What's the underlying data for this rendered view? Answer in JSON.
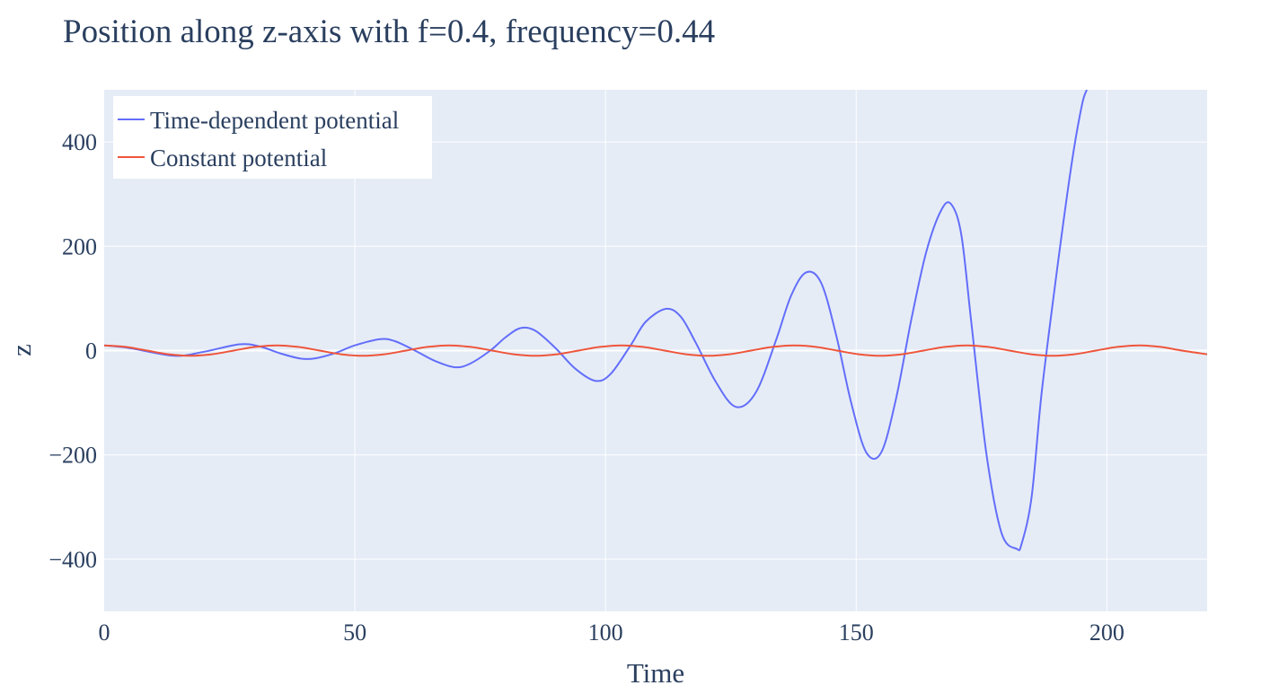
{
  "chart_data": {
    "type": "line",
    "title": "Position along z-axis with f=0.4, frequency=0.44",
    "xlabel": "Time",
    "ylabel": "z",
    "xlim": [
      0,
      220
    ],
    "ylim": [
      -500,
      500
    ],
    "xticks": [
      0,
      50,
      100,
      150,
      200
    ],
    "xtick_labels": [
      "0",
      "50",
      "100",
      "150",
      "200"
    ],
    "yticks": [
      -400,
      -200,
      0,
      200,
      400
    ],
    "ytick_labels": [
      "−400",
      "−200",
      "0",
      "200",
      "400"
    ],
    "grid": true,
    "legend_position": "top-left",
    "series": [
      {
        "name": "Time-dependent potential",
        "color": "#636efa",
        "x": [
          0,
          5,
          14,
          20,
          27,
          31,
          35,
          39,
          42,
          46,
          50,
          55,
          58,
          62,
          66,
          70,
          73,
          77,
          80,
          83,
          86,
          90,
          94,
          98,
          101,
          105,
          108,
          112,
          115,
          118,
          122,
          126,
          130,
          134,
          137,
          140,
          143,
          146,
          149,
          152,
          155,
          158,
          161,
          164,
          167,
          169,
          171,
          173,
          176,
          179,
          182,
          183,
          185,
          187,
          190,
          193,
          195,
          196
        ],
        "y": [
          10,
          5,
          -10,
          -2,
          12,
          8,
          -5,
          -15,
          -15,
          -5,
          10,
          22,
          18,
          0,
          -20,
          -32,
          -25,
          0,
          25,
          43,
          38,
          5,
          -35,
          -58,
          -45,
          10,
          55,
          80,
          65,
          15,
          -60,
          -108,
          -80,
          20,
          105,
          150,
          130,
          30,
          -100,
          -195,
          -195,
          -90,
          60,
          190,
          270,
          280,
          220,
          50,
          -200,
          -350,
          -380,
          -370,
          -280,
          -80,
          150,
          360,
          470,
          500
        ]
      },
      {
        "name": "Constant potential",
        "color": "#ef553b",
        "x": [
          0,
          4.3,
          8.6,
          12.9,
          17.2,
          21.5,
          25.8,
          30.1,
          34.4,
          38.7,
          43.0,
          47.3,
          51.6,
          55.9,
          60.2,
          64.5,
          68.8,
          73.1,
          77.4,
          81.7,
          86.0,
          90.3,
          94.6,
          98.9,
          103.2,
          107.5,
          111.8,
          116.1,
          120.4,
          124.7,
          129.0,
          133.3,
          137.6,
          141.9,
          146.2,
          150.5,
          154.8,
          159.1,
          163.4,
          167.7,
          172.0,
          176.3,
          180.6,
          184.9,
          189.2,
          193.5,
          197.8,
          202.1,
          206.4,
          210.7,
          215.0,
          220
        ],
        "y": [
          10,
          7,
          0,
          -7,
          -10,
          -7,
          0,
          7,
          10,
          7,
          0,
          -7,
          -10,
          -7,
          0,
          7,
          10,
          7,
          0,
          -7,
          -10,
          -7,
          0,
          7,
          10,
          7,
          0,
          -7,
          -10,
          -7,
          0,
          7,
          10,
          7,
          0,
          -7,
          -10,
          -7,
          0,
          7,
          10,
          7,
          0,
          -7,
          -10,
          -7,
          0,
          7,
          10,
          7,
          0,
          -7
        ]
      }
    ]
  }
}
